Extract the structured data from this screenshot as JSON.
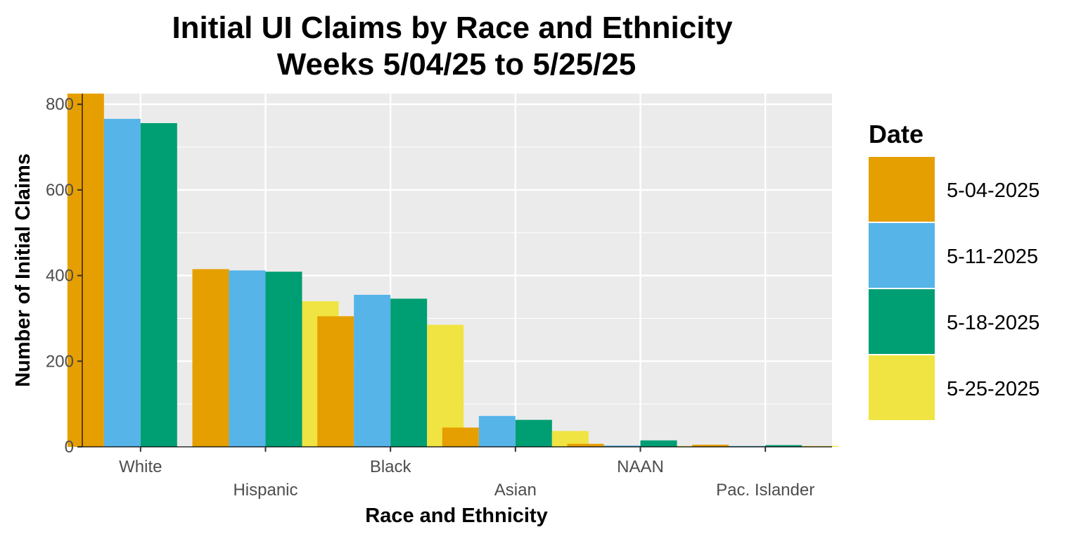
{
  "chart_data": {
    "type": "bar",
    "title": "Initial UI Claims by Race and Ethnicity",
    "subtitle": "Weeks  5/04/25 to 5/25/25",
    "xlabel": "Race and Ethnicity",
    "ylabel": "Number of Initial Claims",
    "categories": [
      "White",
      "Hispanic",
      "Black",
      "Asian",
      "NAAN",
      "Pac. Islander"
    ],
    "ylim": [
      0,
      825
    ],
    "yticks": [
      0,
      200,
      400,
      600,
      800
    ],
    "grid": true,
    "legend": {
      "title": "Date",
      "position": "right"
    },
    "series": [
      {
        "name": "5-04-2025",
        "color": "#E69F00",
        "values": [
          825,
          415,
          305,
          45,
          7,
          5
        ]
      },
      {
        "name": "5-11-2025",
        "color": "#56B4E9",
        "values": [
          766,
          412,
          355,
          72,
          3,
          2
        ]
      },
      {
        "name": "5-18-2025",
        "color": "#009E73",
        "values": [
          756,
          409,
          346,
          63,
          15,
          4
        ]
      },
      {
        "name": "5-25-2025",
        "color": "#F0E442",
        "values": [
          null,
          340,
          285,
          37,
          2,
          2
        ]
      }
    ]
  }
}
